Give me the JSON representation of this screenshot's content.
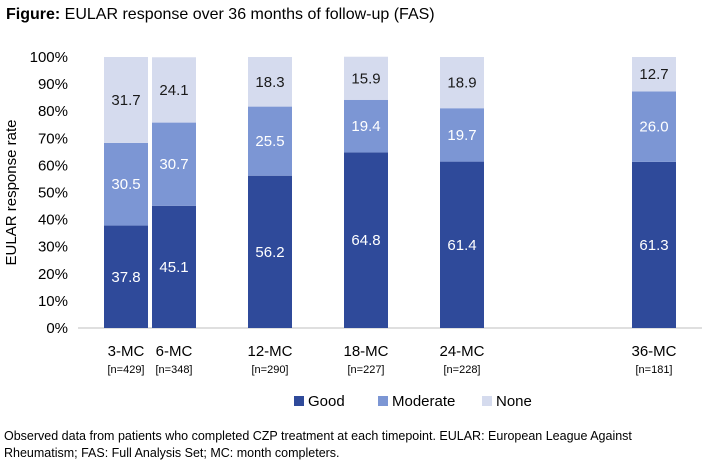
{
  "title": {
    "prefix": "Figure:",
    "text": "EULAR response over 36 months of follow-up (FAS)"
  },
  "footnote": "Observed data from patients who completed CZP treatment at each timepoint. EULAR: European League Against Rheumatism; FAS: Full Analysis Set; MC: month completers.",
  "chart_data": {
    "type": "bar",
    "stacked": true,
    "title": "EULAR response over 36 months of follow-up (FAS)",
    "ylabel": "EULAR response rate",
    "xlabel": "",
    "ylim": [
      0,
      100
    ],
    "yticks": [
      "0%",
      "10%",
      "20%",
      "30%",
      "40%",
      "50%",
      "60%",
      "70%",
      "80%",
      "90%",
      "100%"
    ],
    "categories": [
      "3-MC",
      "6-MC",
      "12-MC",
      "18-MC",
      "24-MC",
      "36-MC"
    ],
    "sublabels": [
      "[n=429]",
      "[n=348]",
      "[n=290]",
      "[n=227]",
      "[n=228]",
      "[n=181]"
    ],
    "month": [
      3,
      6,
      12,
      18,
      24,
      36
    ],
    "series": [
      {
        "name": "Good",
        "color": "#2F4A9A",
        "label_color": "#ffffff",
        "values": [
          37.8,
          45.1,
          56.2,
          64.8,
          61.4,
          61.3
        ]
      },
      {
        "name": "Moderate",
        "color": "#7C96D4",
        "label_color": "#ffffff",
        "values": [
          30.5,
          30.7,
          25.5,
          19.4,
          19.7,
          26.0
        ]
      },
      {
        "name": "None",
        "color": "#D5DBEE",
        "label_color": "#1a1a1a",
        "values": [
          31.7,
          24.1,
          18.3,
          15.9,
          18.9,
          12.7
        ]
      }
    ],
    "legend_position": "bottom"
  }
}
